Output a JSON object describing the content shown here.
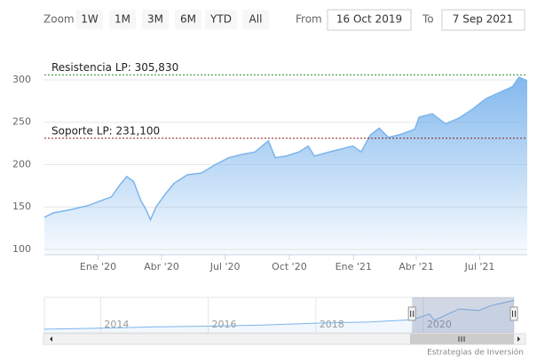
{
  "chart_data": {
    "type": "area",
    "range_selector": {
      "zoom_label": "Zoom",
      "buttons": [
        "1W",
        "1M",
        "3M",
        "6M",
        "YTD",
        "All"
      ],
      "from_label": "From",
      "from": "16 Oct 2019",
      "to_label": "To",
      "to": "7 Sep 2021"
    },
    "x": [
      "2019-10-16",
      "2019-10-29",
      "2019-11-23",
      "2019-12-19",
      "2020-01-07",
      "2020-01-20",
      "2020-02-02",
      "2020-02-11",
      "2020-02-21",
      "2020-03-02",
      "2020-03-09",
      "2020-03-16",
      "2020-03-24",
      "2020-04-06",
      "2020-04-19",
      "2020-05-08",
      "2020-05-28",
      "2020-06-17",
      "2020-07-06",
      "2020-07-25",
      "2020-08-13",
      "2020-09-01",
      "2020-09-11",
      "2020-09-26",
      "2020-10-15",
      "2020-10-28",
      "2020-11-06",
      "2020-11-23",
      "2020-12-12",
      "2020-12-31",
      "2021-01-12",
      "2021-01-25",
      "2021-02-07",
      "2021-02-20",
      "2021-03-11",
      "2021-03-30",
      "2021-04-05",
      "2021-04-24",
      "2021-05-13",
      "2021-06-01",
      "2021-06-20",
      "2021-07-10",
      "2021-07-29",
      "2021-08-17",
      "2021-08-26",
      "2021-09-07"
    ],
    "values": [
      138,
      143,
      147,
      152,
      158,
      162,
      177,
      186,
      180,
      158,
      148,
      135,
      150,
      165,
      178,
      188,
      190,
      200,
      208,
      212,
      215,
      228,
      208,
      210,
      215,
      222,
      210,
      214,
      218,
      222,
      215,
      235,
      243,
      232,
      236,
      242,
      256,
      260,
      248,
      255,
      265,
      278,
      285,
      292,
      303,
      299
    ],
    "color": "#7cb5ec",
    "xlim": [
      "2019-10-16",
      "2021-09-07"
    ],
    "ylim": [
      93.7,
      331.4
    ],
    "yticks": [
      100,
      150,
      200,
      250,
      300
    ],
    "xticks": [
      {
        "value": "2020-01-01",
        "label": "Ene '20"
      },
      {
        "value": "2020-04-01",
        "label": "Abr '20"
      },
      {
        "value": "2020-07-01",
        "label": "Jul '20"
      },
      {
        "value": "2020-10-01",
        "label": "Oct '20"
      },
      {
        "value": "2021-01-01",
        "label": "Ene '21"
      },
      {
        "value": "2021-04-01",
        "label": "Abr '21"
      },
      {
        "value": "2021-07-01",
        "label": "Jul '21"
      }
    ],
    "grid": true,
    "plot_lines": [
      {
        "label": "Resistencia LP: 305,830",
        "value": 305.83,
        "color": "#2e8b2e"
      },
      {
        "label": "Soporte LP: 231,100",
        "value": 231.1,
        "color": "#8b1a1a"
      }
    ],
    "navigator": {
      "x": [
        "2012-12-15",
        "2014-01-01",
        "2015-01-01",
        "2016-01-01",
        "2017-01-01",
        "2018-01-01",
        "2019-01-01",
        "2019-10-16",
        "2020-02-11",
        "2020-03-16",
        "2020-09-01",
        "2021-01-12",
        "2021-04-05",
        "2021-09-07"
      ],
      "values": [
        60,
        68,
        80,
        85,
        95,
        110,
        120,
        138,
        186,
        135,
        228,
        215,
        256,
        299
      ],
      "xlim": [
        "2012-12-15",
        "2021-09-07"
      ],
      "ylim": [
        30,
        310
      ],
      "xticks": [
        {
          "value": "2014-01-01",
          "label": "2014"
        },
        {
          "value": "2016-01-01",
          "label": "2016"
        },
        {
          "value": "2018-01-01",
          "label": "2018"
        },
        {
          "value": "2020-01-01",
          "label": "2020"
        }
      ]
    },
    "credit": "Estrategias de Inversión"
  }
}
